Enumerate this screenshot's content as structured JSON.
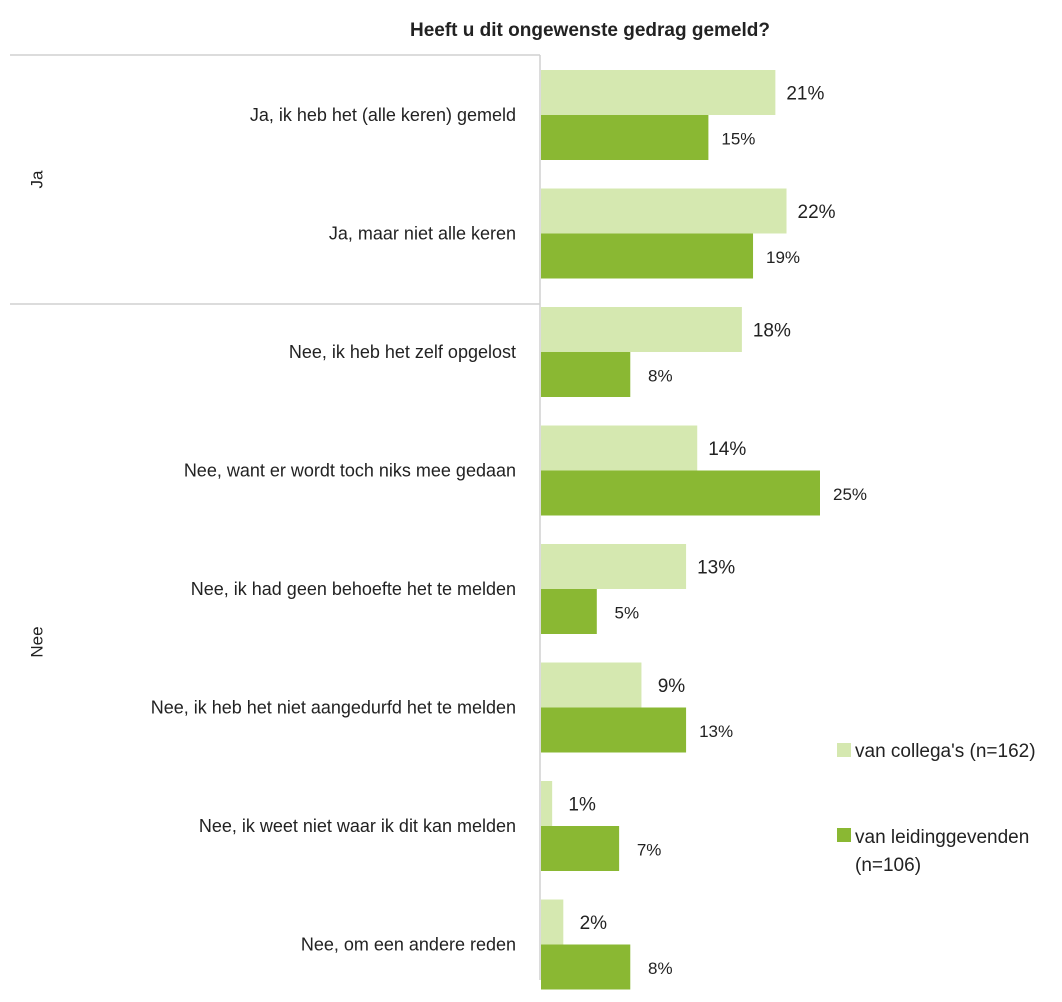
{
  "chart_data": {
    "type": "bar",
    "orientation": "horizontal",
    "title": "Heeft u dit ongewenste gedrag gemeld?",
    "groups": [
      {
        "label": "Ja",
        "categories": [
          "Ja, ik heb het (alle keren) gemeld",
          "Ja, maar niet alle keren"
        ]
      },
      {
        "label": "Nee",
        "categories": [
          "Nee, ik heb het zelf opgelost",
          "Nee, want er wordt toch niks mee gedaan",
          "Nee, ik had geen behoefte het te melden",
          "Nee, ik heb het niet aangedurfd het te melden",
          "Nee, ik weet niet waar ik dit kan melden",
          "Nee, om een andere reden"
        ]
      }
    ],
    "categories": [
      "Ja, ik heb het (alle keren) gemeld",
      "Ja, maar niet alle keren",
      "Nee, ik heb het zelf opgelost",
      "Nee, want er wordt toch niks mee gedaan",
      "Nee, ik had geen behoefte het te melden",
      "Nee, ik heb het niet aangedurfd het te melden",
      "Nee, ik weet niet waar ik dit kan melden",
      "Nee, om een andere reden"
    ],
    "series": [
      {
        "name": "van collega's (n=162)",
        "color": "#d5e8b0",
        "values": [
          21,
          22,
          18,
          14,
          13,
          9,
          1,
          2
        ]
      },
      {
        "name": "van leidinggevenden (n=106)",
        "legend_lines": [
          "van leidinggevenden",
          "(n=106)"
        ],
        "color": "#8ab833",
        "values": [
          15,
          19,
          8,
          25,
          5,
          13,
          7,
          8
        ]
      }
    ],
    "value_suffix": "%",
    "xlim": [
      0,
      25
    ],
    "grid": false,
    "legend": "right"
  }
}
